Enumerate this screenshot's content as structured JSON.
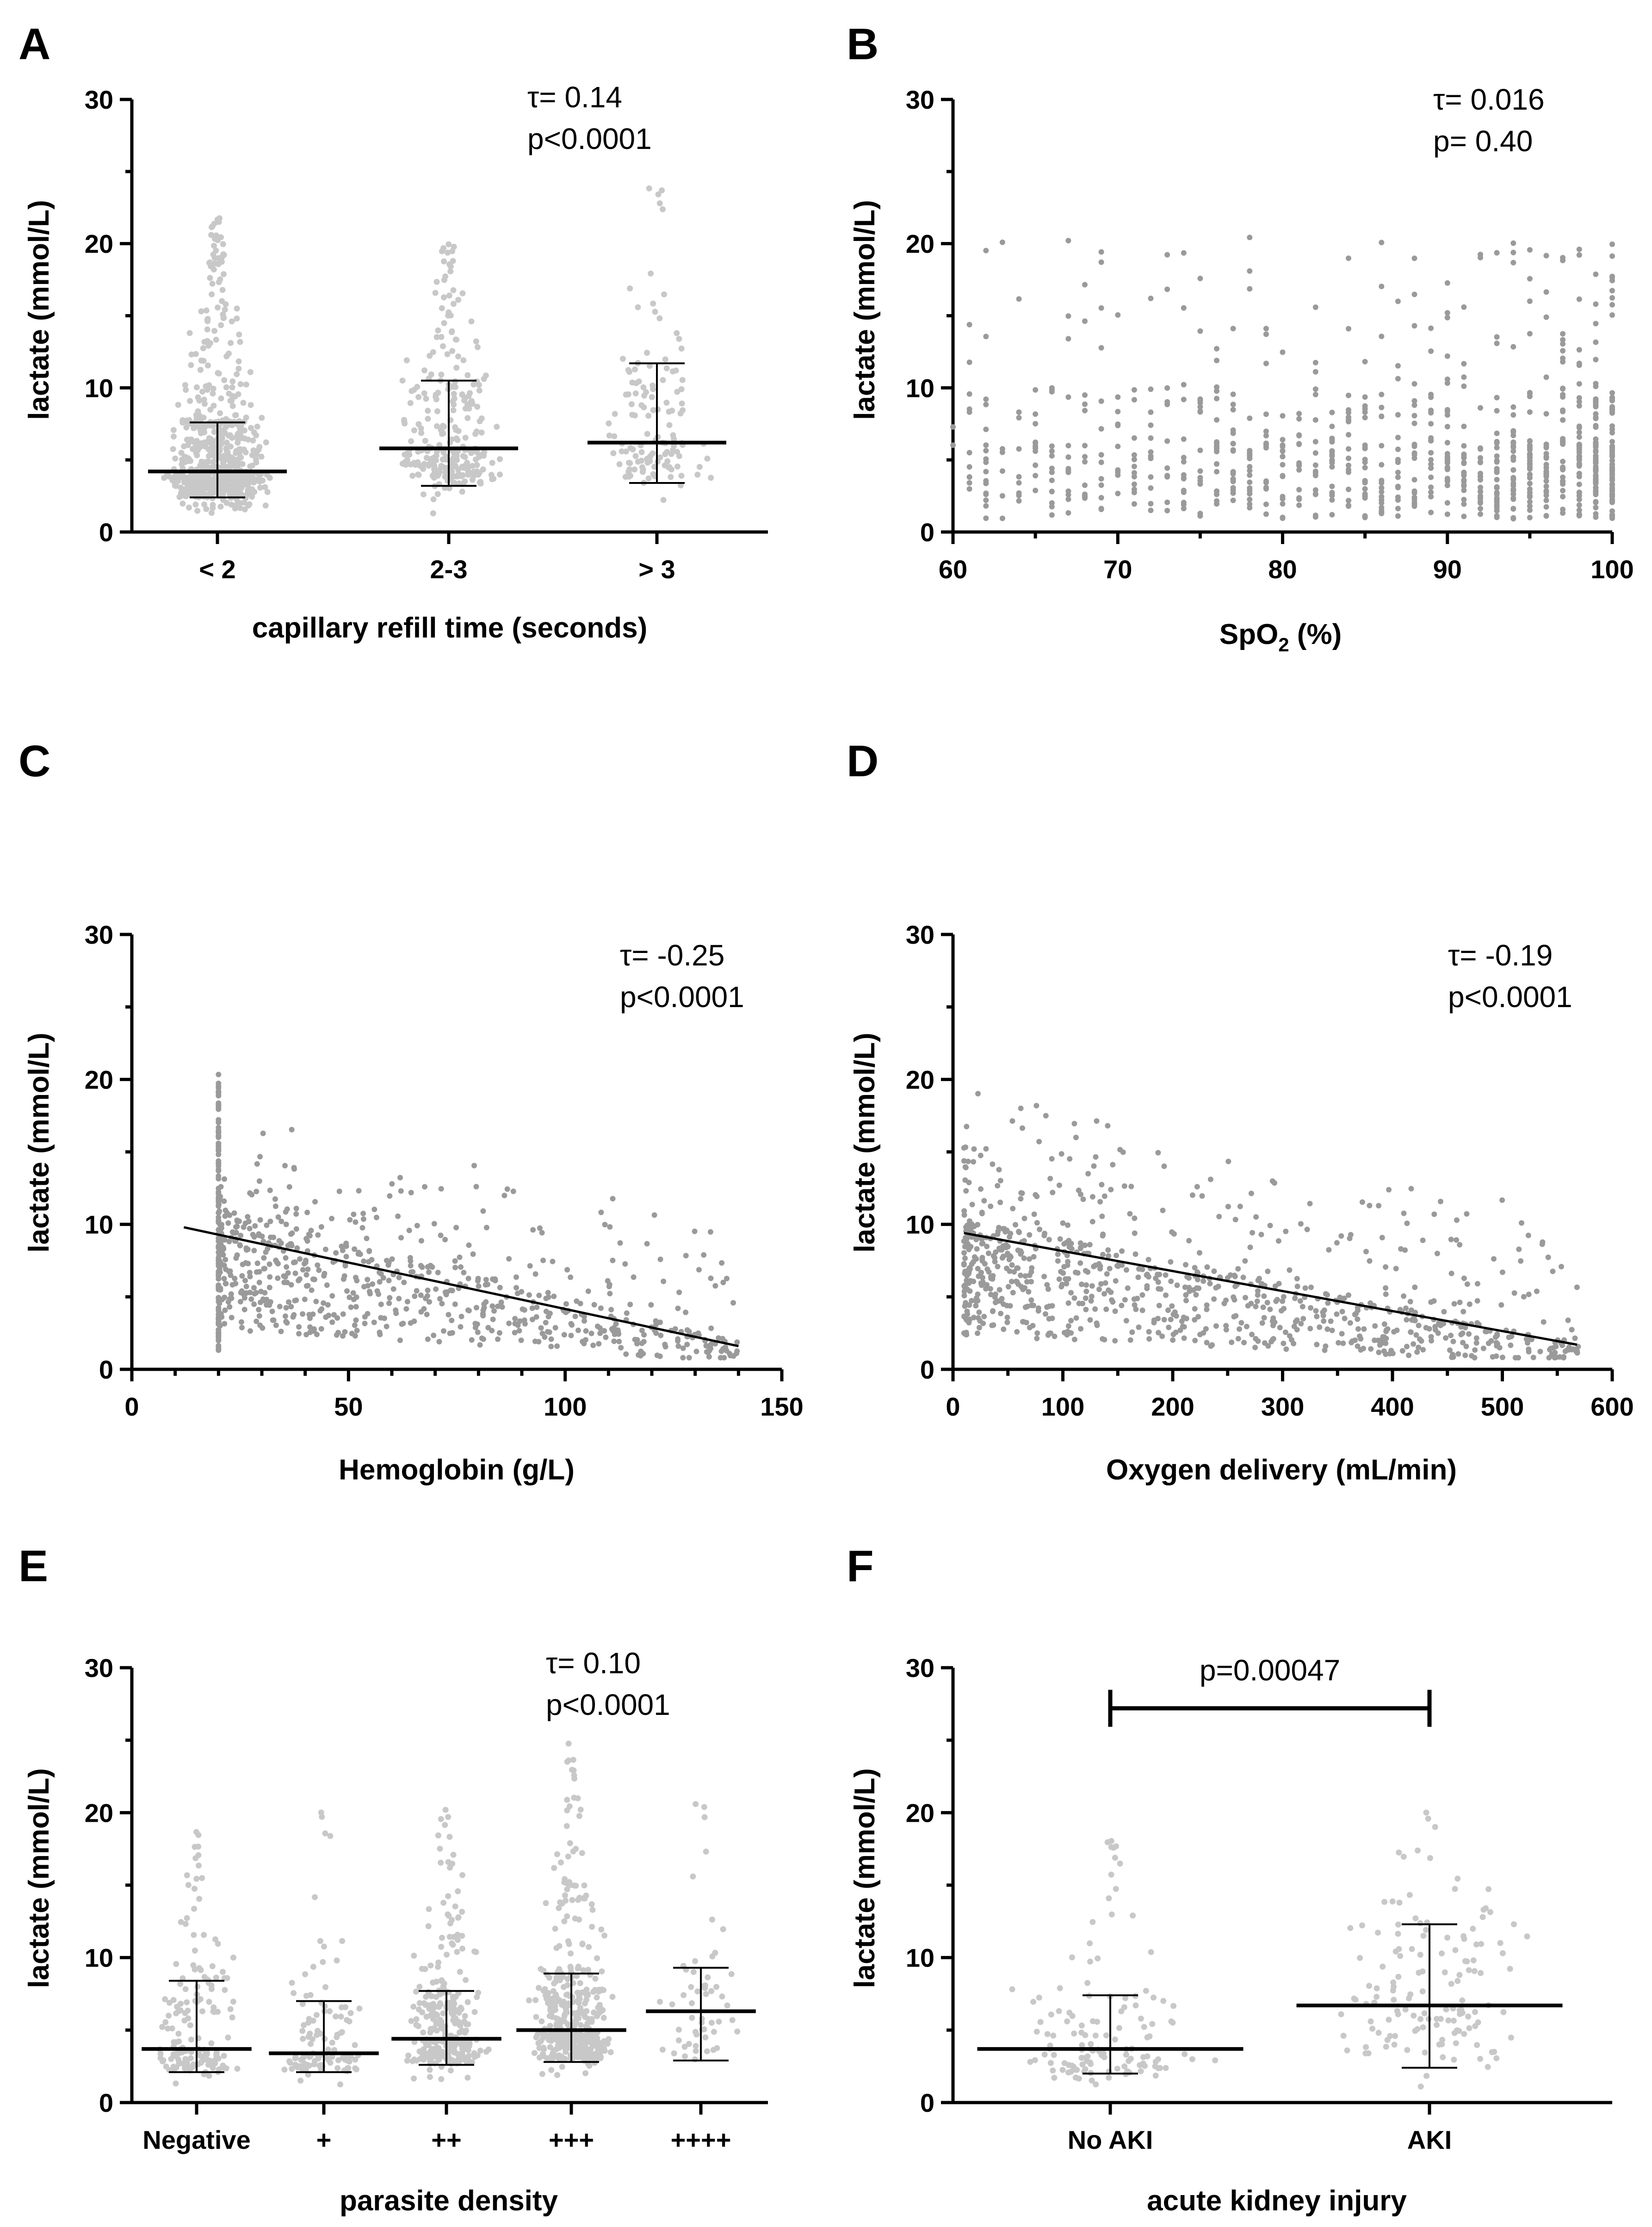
{
  "figure": {
    "colors": {
      "point_light": "#c8c8c8",
      "point_dark": "#9a9a9a",
      "ink": "#000000"
    }
  },
  "chart_data": [
    {
      "id": "A",
      "panel_label": "A",
      "type": "scatter",
      "subtype": "column-dot",
      "title": "",
      "xlabel": "capillary refill time (seconds)",
      "ylabel": "lactate (mmol/L)",
      "ylim": [
        0,
        30
      ],
      "yticks": [
        "0",
        "10",
        "20",
        "30"
      ],
      "categories": [
        "< 2",
        "2-3",
        "> 3"
      ],
      "groups": [
        {
          "name": "< 2",
          "median": 4.2,
          "q1": 2.4,
          "q3": 7.6,
          "max": 21.8,
          "min": 0.6,
          "n": 700
        },
        {
          "name": "2-3",
          "median": 5.8,
          "q1": 3.2,
          "q3": 10.5,
          "max": 20.8,
          "min": 0.9,
          "n": 280
        },
        {
          "name": "> 3",
          "median": 6.2,
          "q1": 3.4,
          "q3": 11.7,
          "max": 25.0,
          "min": 0.9,
          "n": 130
        }
      ],
      "annotation": {
        "line1": "τ= 0.14",
        "line2": "p<0.0001"
      }
    },
    {
      "id": "B",
      "panel_label": "B",
      "type": "scatter",
      "subtype": "xy",
      "title": "",
      "xlabel": "SpO",
      "xlabel_sub": "2",
      "xlabel_suffix": " (%)",
      "ylabel": "lactate (mmol/L)",
      "xlim": [
        60,
        100
      ],
      "ylim": [
        0,
        30
      ],
      "xticks": [
        "60",
        "70",
        "80",
        "90",
        "100"
      ],
      "yticks": [
        "0",
        "10",
        "20",
        "30"
      ],
      "annotation": {
        "line1": "τ= 0.016",
        "line2": "p= 0.40"
      }
    },
    {
      "id": "C",
      "panel_label": "C",
      "type": "scatter",
      "subtype": "xy-fit",
      "title": "",
      "xlabel": "Hemoglobin (g/L)",
      "ylabel": "lactate (mmol/L)",
      "xlim": [
        0,
        150
      ],
      "ylim": [
        0,
        30
      ],
      "xticks": [
        "0",
        "50",
        "100",
        "150"
      ],
      "yticks": [
        "0",
        "10",
        "20",
        "30"
      ],
      "fit_line": {
        "x": [
          12,
          140
        ],
        "y": [
          9.8,
          1.6
        ]
      },
      "annotation": {
        "line1": "τ= -0.25",
        "line2": "p<0.0001"
      }
    },
    {
      "id": "D",
      "panel_label": "D",
      "type": "scatter",
      "subtype": "xy-fit",
      "title": "",
      "xlabel": "Oxygen delivery (mL/min)",
      "ylabel": "lactate (mmol/L)",
      "xlim": [
        0,
        600
      ],
      "ylim": [
        0,
        30
      ],
      "xticks": [
        "0",
        "100",
        "200",
        "300",
        "400",
        "500",
        "600"
      ],
      "yticks": [
        "0",
        "10",
        "20",
        "30"
      ],
      "fit_line": {
        "x": [
          10,
          568
        ],
        "y": [
          9.4,
          1.7
        ]
      },
      "annotation": {
        "line1": "τ= -0.19",
        "line2": "p<0.0001"
      }
    },
    {
      "id": "E",
      "panel_label": "E",
      "type": "scatter",
      "subtype": "column-dot",
      "title": "",
      "xlabel": "parasite density",
      "ylabel": "lactate (mmol/L)",
      "ylim": [
        0,
        30
      ],
      "yticks": [
        "0",
        "10",
        "20",
        "30"
      ],
      "categories": [
        "Negative",
        "+",
        "++",
        "+++",
        "++++"
      ],
      "groups": [
        {
          "name": "Negative",
          "median": 3.7,
          "q1": 2.1,
          "q3": 8.4,
          "max": 18.8,
          "min": 0.9,
          "n": 160
        },
        {
          "name": "+",
          "median": 3.4,
          "q1": 2.1,
          "q3": 7.0,
          "max": 20.5,
          "min": 0.9,
          "n": 110
        },
        {
          "name": "++",
          "median": 4.4,
          "q1": 2.6,
          "q3": 7.7,
          "max": 21.8,
          "min": 0.9,
          "n": 300
        },
        {
          "name": "+++",
          "median": 5.0,
          "q1": 2.8,
          "q3": 8.9,
          "max": 25.0,
          "min": 0.9,
          "n": 420
        },
        {
          "name": "++++",
          "median": 6.3,
          "q1": 2.9,
          "q3": 9.3,
          "max": 22.0,
          "min": 0.9,
          "n": 55
        }
      ],
      "annotation": {
        "line1": "τ= 0.10",
        "line2": "p<0.0001"
      }
    },
    {
      "id": "F",
      "panel_label": "F",
      "type": "scatter",
      "subtype": "column-dot",
      "title": "",
      "xlabel": "acute kidney injury",
      "ylabel": "lactate (mmol/L)",
      "ylim": [
        0,
        30
      ],
      "yticks": [
        "0",
        "10",
        "20",
        "30"
      ],
      "categories": [
        "No AKI",
        "AKI"
      ],
      "groups": [
        {
          "name": "No AKI",
          "median": 3.7,
          "q1": 2.0,
          "q3": 7.4,
          "max": 18.7,
          "min": 0.9,
          "n": 130
        },
        {
          "name": "AKI",
          "median": 6.7,
          "q1": 2.4,
          "q3": 12.3,
          "max": 20.4,
          "min": 0.9,
          "n": 140
        }
      ],
      "bracket": {
        "label": "p=0.00047",
        "y": 27.2
      }
    }
  ]
}
